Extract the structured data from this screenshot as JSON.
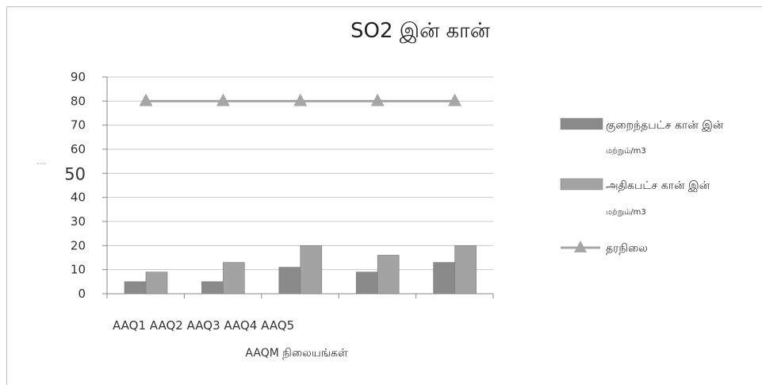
{
  "chart_data": {
    "type": "bar",
    "title": "SO2 இன் கான்",
    "xlabel": "AAQM நிலையங்கள்",
    "ylabel": "",
    "y_marker_text": "~~~",
    "category_label_line": "AAQ1 AAQ2 AAQ3 AAQ4 AAQ5",
    "categories": [
      "AAQ1",
      "AAQ2",
      "AAQ3",
      "AAQ4",
      "AAQ5"
    ],
    "ylim": [
      0,
      90
    ],
    "yticks": [
      "0",
      "10",
      "20",
      "30",
      "40",
      "50",
      "60",
      "70",
      "80",
      "90"
    ],
    "emphasized_tick": "50",
    "grid": true,
    "legend_position": "right",
    "series": [
      {
        "name": "குறைந்தபட்ச கான் இன்",
        "name_sub": "மற்றும்/m3",
        "kind": "bar",
        "color": "#8a8a8a",
        "values": [
          5,
          5,
          11,
          9,
          13
        ]
      },
      {
        "name": "அதிகபட்ச கான் இன்",
        "name_sub": "மற்றும்/m3",
        "kind": "bar",
        "color": "#a3a3a3",
        "values": [
          9,
          13,
          20,
          16,
          20
        ]
      },
      {
        "name": "தரநிலை",
        "kind": "line",
        "marker": "triangle",
        "color": "#a6a6a6",
        "values": [
          80,
          80,
          80,
          80,
          80
        ]
      }
    ]
  }
}
